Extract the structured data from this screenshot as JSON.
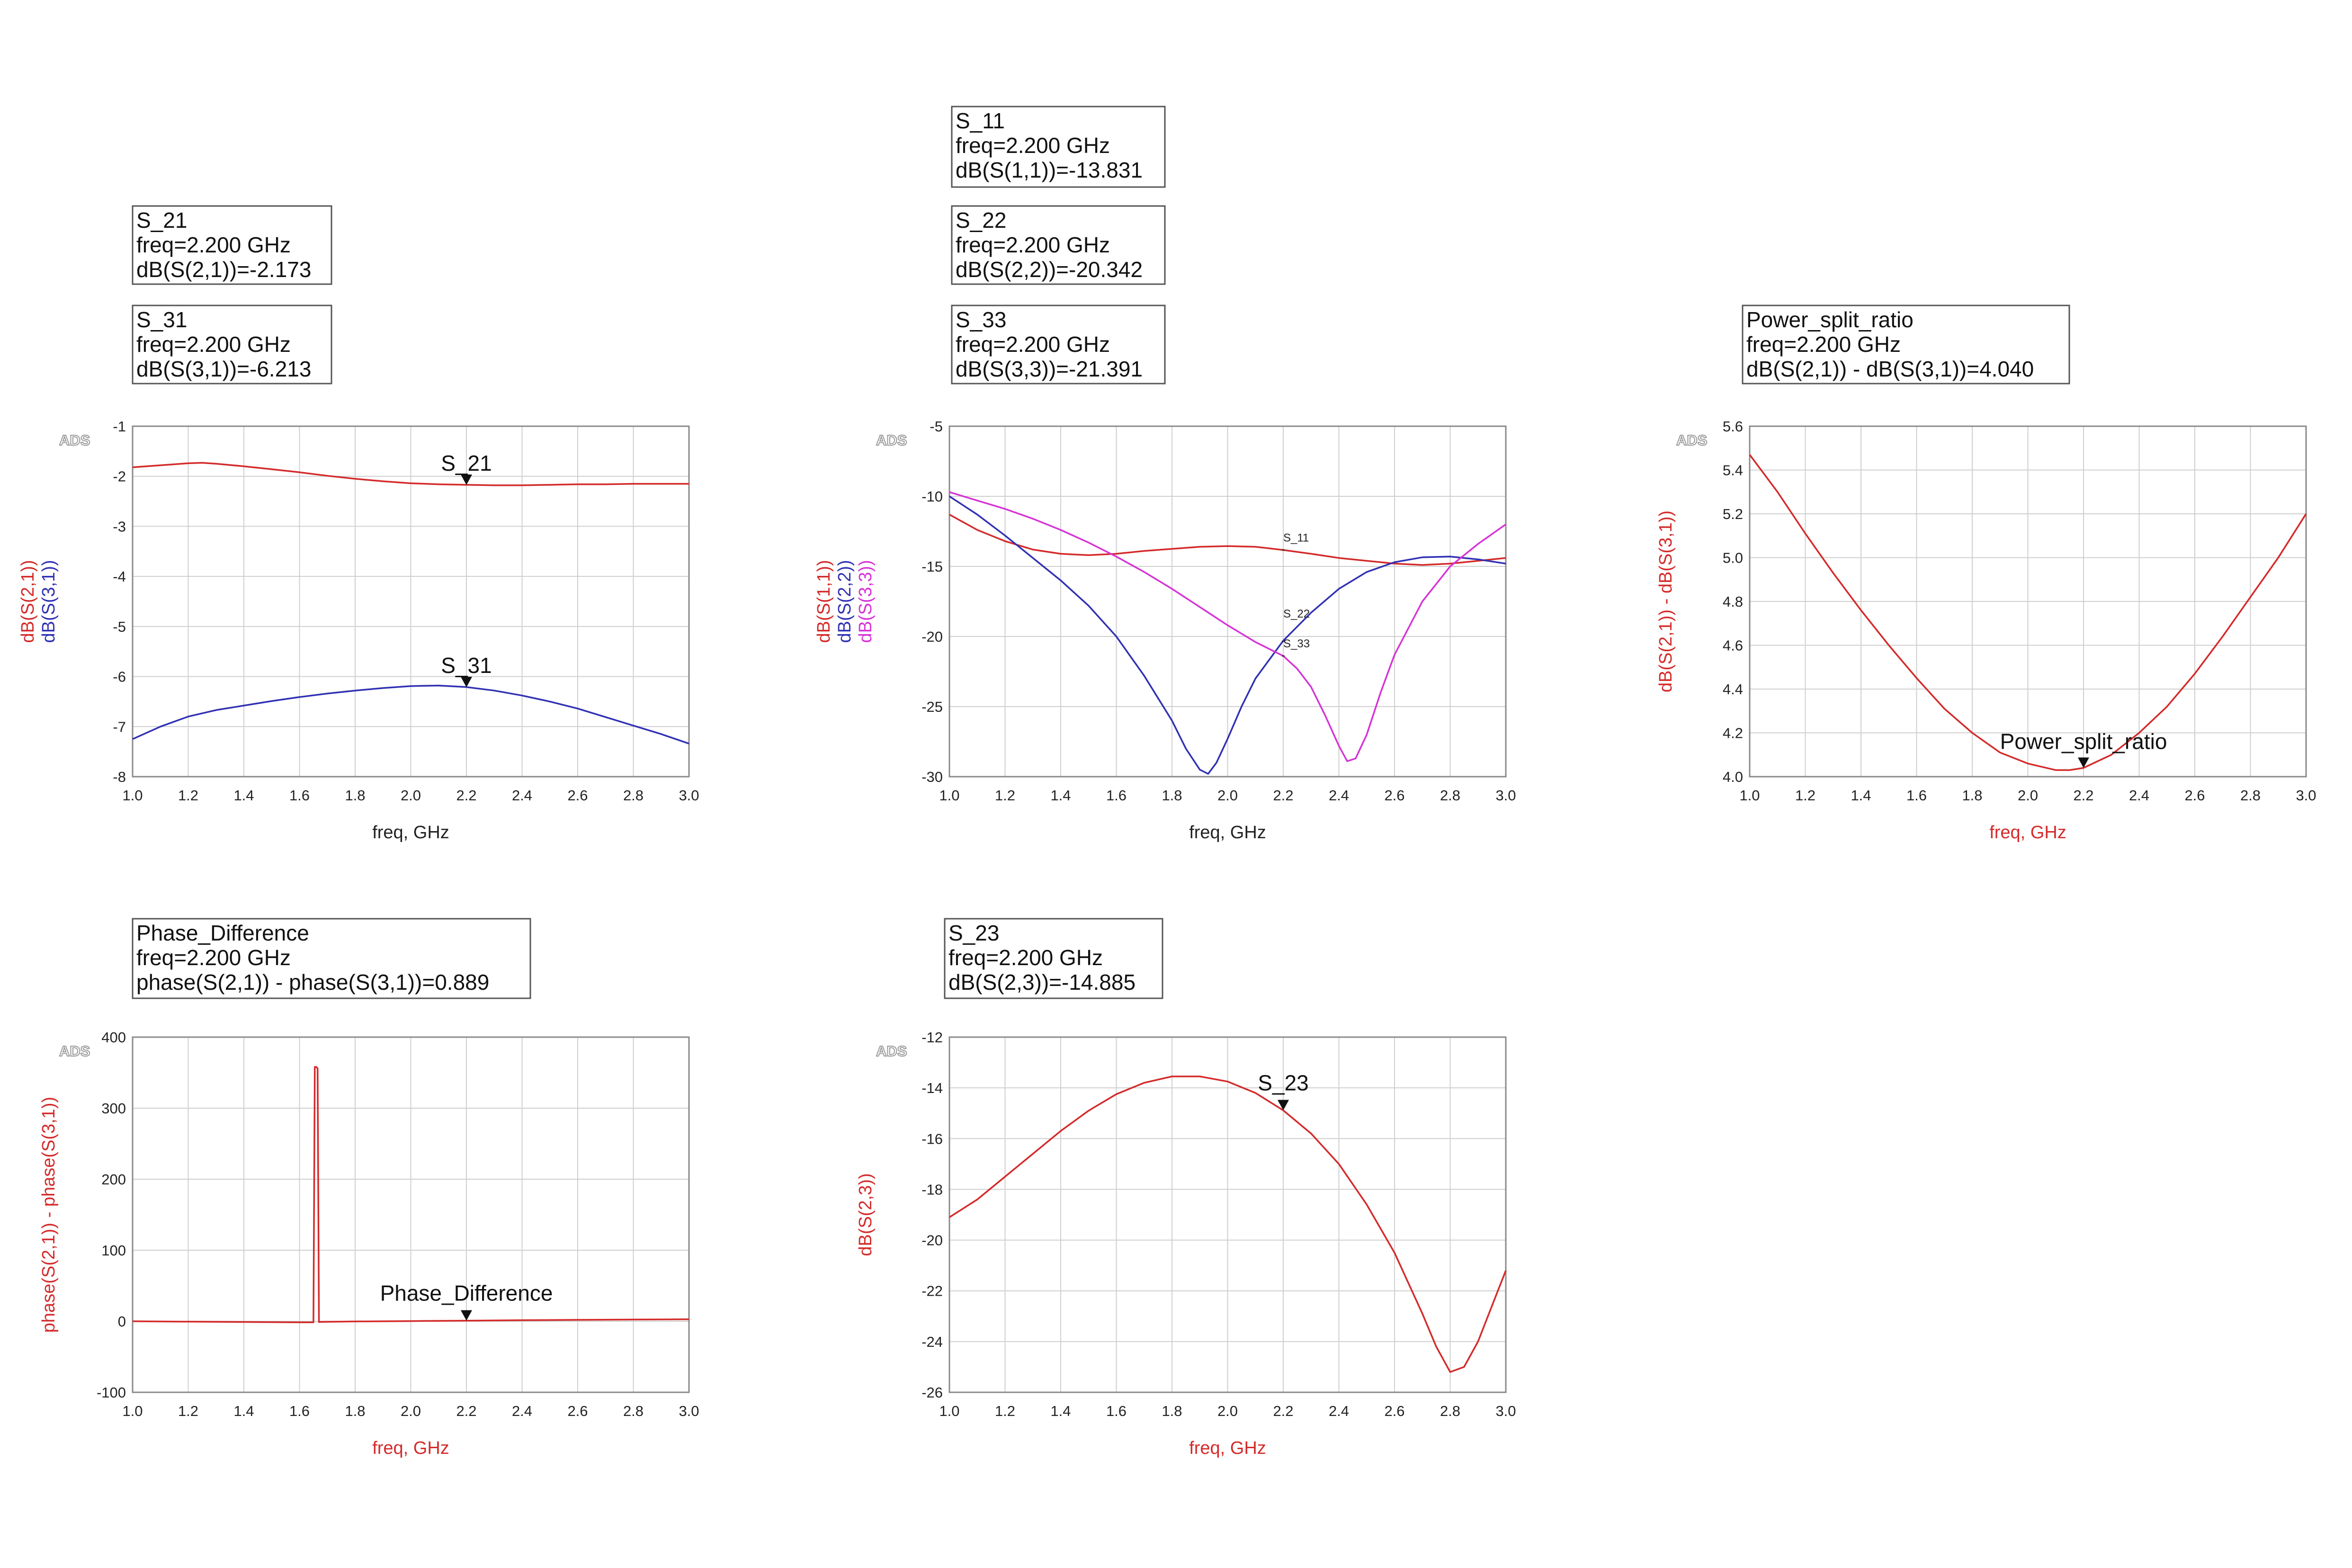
{
  "colors": {
    "red": "#d42a2a",
    "blue": "#3030b4",
    "magenta": "#d633d6",
    "text": "#111111"
  },
  "chart_data": [
    {
      "id": "s21_s31",
      "type": "line",
      "watermark": "ADS",
      "xlabel": "freq, GHz",
      "ylabel_parts": [
        {
          "text": "dB(S(2,1))",
          "color": "#d42a2a"
        },
        {
          "text": "dB(S(3,1))",
          "color": "#3030b4"
        }
      ],
      "xlim": [
        1.0,
        3.0
      ],
      "ylim": [
        -8,
        -1
      ],
      "xticks": [
        "1.0",
        "1.2",
        "1.4",
        "1.6",
        "1.8",
        "2.0",
        "2.2",
        "2.4",
        "2.6",
        "2.8",
        "3.0"
      ],
      "yticks": [
        "-1",
        "-2",
        "-3",
        "-4",
        "-5",
        "-6",
        "-7",
        "-8"
      ],
      "grid": true,
      "series": [
        {
          "name": "dB(S(2,1))",
          "color": "#d42a2a",
          "x": [
            1.0,
            1.1,
            1.2,
            1.25,
            1.3,
            1.4,
            1.5,
            1.6,
            1.7,
            1.8,
            1.9,
            2.0,
            2.1,
            2.2,
            2.3,
            2.4,
            2.5,
            2.6,
            2.7,
            2.8,
            2.9,
            3.0
          ],
          "y": [
            -1.82,
            -1.78,
            -1.74,
            -1.73,
            -1.75,
            -1.8,
            -1.86,
            -1.92,
            -1.99,
            -2.05,
            -2.1,
            -2.14,
            -2.16,
            -2.17,
            -2.18,
            -2.18,
            -2.17,
            -2.16,
            -2.16,
            -2.15,
            -2.15,
            -2.15
          ]
        },
        {
          "name": "dB(S(3,1))",
          "color": "#3030b4",
          "x": [
            1.0,
            1.1,
            1.2,
            1.3,
            1.4,
            1.5,
            1.6,
            1.7,
            1.8,
            1.9,
            2.0,
            2.1,
            2.2,
            2.3,
            2.4,
            2.5,
            2.6,
            2.7,
            2.8,
            2.9,
            3.0
          ],
          "y": [
            -7.25,
            -7.0,
            -6.8,
            -6.67,
            -6.58,
            -6.49,
            -6.41,
            -6.34,
            -6.28,
            -6.23,
            -6.19,
            -6.18,
            -6.21,
            -6.28,
            -6.38,
            -6.5,
            -6.64,
            -6.81,
            -6.98,
            -7.15,
            -7.34
          ]
        }
      ],
      "markers": [
        {
          "label": "S_21",
          "x": 2.2,
          "y": -2.173,
          "color": "#111111"
        },
        {
          "label": "S_31",
          "x": 2.2,
          "y": -6.213,
          "color": "#111111"
        }
      ],
      "readouts": [
        {
          "lines": [
            "S_21",
            "freq=2.200 GHz",
            "dB(S(2,1))=-2.173"
          ]
        },
        {
          "lines": [
            "S_31",
            "freq=2.200 GHz",
            "dB(S(3,1))=-6.213"
          ]
        }
      ]
    },
    {
      "id": "s11_s22_s33",
      "type": "line",
      "watermark": "ADS",
      "xlabel": "freq, GHz",
      "ylabel_parts": [
        {
          "text": "dB(S(1,1))",
          "color": "#d42a2a"
        },
        {
          "text": "dB(S(2,2))",
          "color": "#3030b4"
        },
        {
          "text": "dB(S(3,3))",
          "color": "#d633d6"
        }
      ],
      "xlim": [
        1.0,
        3.0
      ],
      "ylim": [
        -30,
        -5
      ],
      "xticks": [
        "1.0",
        "1.2",
        "1.4",
        "1.6",
        "1.8",
        "2.0",
        "2.2",
        "2.4",
        "2.6",
        "2.8",
        "3.0"
      ],
      "yticks": [
        "-5",
        "-10",
        "-15",
        "-20",
        "-25",
        "-30"
      ],
      "grid": true,
      "series": [
        {
          "name": "dB(S(1,1))",
          "color": "#d42a2a",
          "x": [
            1.0,
            1.1,
            1.2,
            1.3,
            1.4,
            1.5,
            1.6,
            1.7,
            1.8,
            1.9,
            2.0,
            2.1,
            2.2,
            2.3,
            2.4,
            2.5,
            2.6,
            2.7,
            2.8,
            2.9,
            3.0
          ],
          "y": [
            -11.3,
            -12.4,
            -13.2,
            -13.8,
            -14.1,
            -14.2,
            -14.1,
            -13.9,
            -13.75,
            -13.6,
            -13.55,
            -13.6,
            -13.83,
            -14.1,
            -14.4,
            -14.6,
            -14.8,
            -14.9,
            -14.8,
            -14.6,
            -14.4
          ]
        },
        {
          "name": "dB(S(2,2))",
          "color": "#3030b4",
          "x": [
            1.0,
            1.1,
            1.2,
            1.3,
            1.4,
            1.5,
            1.6,
            1.7,
            1.8,
            1.85,
            1.9,
            1.93,
            1.96,
            2.0,
            2.05,
            2.1,
            2.2,
            2.3,
            2.4,
            2.5,
            2.6,
            2.7,
            2.8,
            2.9,
            3.0
          ],
          "y": [
            -10.0,
            -11.3,
            -12.8,
            -14.4,
            -16.0,
            -17.8,
            -20.0,
            -22.8,
            -26.0,
            -28.0,
            -29.5,
            -29.8,
            -29.0,
            -27.3,
            -25.0,
            -23.0,
            -20.3,
            -18.3,
            -16.6,
            -15.4,
            -14.7,
            -14.35,
            -14.3,
            -14.5,
            -14.8
          ]
        },
        {
          "name": "dB(S(3,3))",
          "color": "#d633d6",
          "x": [
            1.0,
            1.1,
            1.2,
            1.3,
            1.4,
            1.5,
            1.6,
            1.7,
            1.8,
            1.9,
            2.0,
            2.1,
            2.2,
            2.25,
            2.3,
            2.35,
            2.4,
            2.43,
            2.46,
            2.5,
            2.55,
            2.6,
            2.7,
            2.8,
            2.9,
            3.0
          ],
          "y": [
            -9.7,
            -10.3,
            -10.9,
            -11.6,
            -12.4,
            -13.3,
            -14.3,
            -15.4,
            -16.6,
            -17.9,
            -19.2,
            -20.4,
            -21.39,
            -22.3,
            -23.6,
            -25.6,
            -27.8,
            -28.9,
            -28.7,
            -27.0,
            -24.0,
            -21.3,
            -17.5,
            -15.0,
            -13.4,
            -12.0
          ]
        }
      ],
      "markers": [
        {
          "label": "S_11",
          "x": 2.2,
          "y": -13.831,
          "small": true
        },
        {
          "label": "S_22",
          "x": 2.2,
          "y": -20.342,
          "small": true
        },
        {
          "label": "S_33",
          "x": 2.2,
          "y": -21.391,
          "small": true
        }
      ],
      "readouts": [
        {
          "lines": [
            "S_11",
            "freq=2.200 GHz",
            "dB(S(1,1))=-13.831"
          ]
        },
        {
          "lines": [
            "S_22",
            "freq=2.200 GHz",
            "dB(S(2,2))=-20.342"
          ]
        },
        {
          "lines": [
            "S_33",
            "freq=2.200 GHz",
            "dB(S(3,3))=-21.391"
          ]
        }
      ]
    },
    {
      "id": "power_split",
      "type": "line",
      "watermark": "ADS",
      "xlabel": "freq, GHz",
      "xlabel_color": "#d42a2a",
      "ylabel_parts": [
        {
          "text": "dB(S(2,1)) - dB(S(3,1))",
          "color": "#d42a2a"
        }
      ],
      "xlim": [
        1.0,
        3.0
      ],
      "ylim": [
        4.0,
        5.6
      ],
      "xticks": [
        "1.0",
        "1.2",
        "1.4",
        "1.6",
        "1.8",
        "2.0",
        "2.2",
        "2.4",
        "2.6",
        "2.8",
        "3.0"
      ],
      "yticks": [
        "5.6",
        "5.4",
        "5.2",
        "5.0",
        "4.8",
        "4.6",
        "4.4",
        "4.2",
        "4.0"
      ],
      "grid": true,
      "series": [
        {
          "name": "dB(S(2,1)) - dB(S(3,1))",
          "color": "#d42a2a",
          "x": [
            1.0,
            1.1,
            1.2,
            1.3,
            1.4,
            1.5,
            1.6,
            1.7,
            1.8,
            1.9,
            2.0,
            2.1,
            2.15,
            2.2,
            2.3,
            2.4,
            2.5,
            2.6,
            2.7,
            2.8,
            2.9,
            3.0
          ],
          "y": [
            5.47,
            5.3,
            5.11,
            4.93,
            4.76,
            4.6,
            4.45,
            4.31,
            4.2,
            4.11,
            4.06,
            4.03,
            4.03,
            4.04,
            4.1,
            4.2,
            4.32,
            4.47,
            4.64,
            4.82,
            5.0,
            5.2
          ]
        }
      ],
      "markers": [
        {
          "label": "Power_split_ratio",
          "x": 2.2,
          "y": 4.04
        }
      ],
      "readouts": [
        {
          "lines": [
            "Power_split_ratio",
            "freq=2.200 GHz",
            "dB(S(2,1)) - dB(S(3,1))=4.040"
          ]
        }
      ]
    },
    {
      "id": "phase_diff",
      "type": "line",
      "watermark": "ADS",
      "xlabel": "freq, GHz",
      "xlabel_color": "#d42a2a",
      "ylabel_parts": [
        {
          "text": "phase(S(2,1)) - phase(S(3,1))",
          "color": "#d42a2a"
        }
      ],
      "xlim": [
        1.0,
        3.0
      ],
      "ylim": [
        -100,
        400
      ],
      "xticks": [
        "1.0",
        "1.2",
        "1.4",
        "1.6",
        "1.8",
        "2.0",
        "2.2",
        "2.4",
        "2.6",
        "2.8",
        "3.0"
      ],
      "yticks": [
        "400",
        "300",
        "200",
        "100",
        "0",
        "-100"
      ],
      "grid": true,
      "series": [
        {
          "name": "phase(S(2,1)) - phase(S(3,1))",
          "color": "#d42a2a",
          "x": [
            1.0,
            1.2,
            1.4,
            1.6,
            1.65,
            1.655,
            1.66,
            1.665,
            1.67,
            1.675,
            1.68,
            1.8,
            2.0,
            2.2,
            2.4,
            2.6,
            2.8,
            3.0
          ],
          "y": [
            0.0,
            -0.5,
            -1.0,
            -1.5,
            -1.5,
            358,
            358,
            356,
            -1.2,
            -1.0,
            -0.8,
            -0.3,
            0.3,
            0.889,
            1.5,
            2.0,
            2.4,
            2.8
          ]
        }
      ],
      "markers": [
        {
          "label": "Phase_Difference",
          "x": 2.2,
          "y": 0.889
        }
      ],
      "readouts": [
        {
          "lines": [
            "Phase_Difference",
            "freq=2.200 GHz",
            "phase(S(2,1)) - phase(S(3,1))=0.889"
          ]
        }
      ]
    },
    {
      "id": "s23",
      "type": "line",
      "watermark": "ADS",
      "xlabel": "freq, GHz",
      "xlabel_color": "#d42a2a",
      "ylabel_parts": [
        {
          "text": "dB(S(2,3))",
          "color": "#d42a2a"
        }
      ],
      "xlim": [
        1.0,
        3.0
      ],
      "ylim": [
        -26,
        -12
      ],
      "xticks": [
        "1.0",
        "1.2",
        "1.4",
        "1.6",
        "1.8",
        "2.0",
        "2.2",
        "2.4",
        "2.6",
        "2.8",
        "3.0"
      ],
      "yticks": [
        "-12",
        "-14",
        "-16",
        "-18",
        "-20",
        "-22",
        "-24",
        "-26"
      ],
      "grid": true,
      "series": [
        {
          "name": "dB(S(2,3))",
          "color": "#d42a2a",
          "x": [
            1.0,
            1.1,
            1.2,
            1.3,
            1.4,
            1.5,
            1.6,
            1.7,
            1.8,
            1.9,
            2.0,
            2.1,
            2.2,
            2.3,
            2.4,
            2.5,
            2.6,
            2.7,
            2.75,
            2.8,
            2.85,
            2.9,
            2.95,
            3.0
          ],
          "y": [
            -19.1,
            -18.4,
            -17.5,
            -16.6,
            -15.7,
            -14.9,
            -14.25,
            -13.8,
            -13.55,
            -13.55,
            -13.75,
            -14.2,
            -14.885,
            -15.8,
            -17.0,
            -18.6,
            -20.5,
            -22.9,
            -24.2,
            -25.2,
            -25.0,
            -24.0,
            -22.6,
            -21.2
          ]
        }
      ],
      "markers": [
        {
          "label": "S_23",
          "x": 2.2,
          "y": -14.885
        }
      ],
      "readouts": [
        {
          "lines": [
            "S_23",
            "freq=2.200 GHz",
            "dB(S(2,3))=-14.885"
          ]
        }
      ]
    }
  ]
}
